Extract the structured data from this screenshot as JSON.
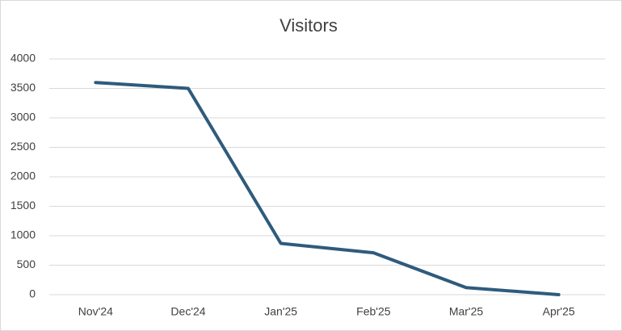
{
  "chart_data": {
    "type": "line",
    "title": "Visitors",
    "categories": [
      "Nov'24",
      "Dec'24",
      "Jan'25",
      "Feb'25",
      "Mar'25",
      "Apr'25"
    ],
    "values": [
      3600,
      3500,
      870,
      710,
      120,
      0
    ],
    "color": "#2f5b7c",
    "ylim": [
      0,
      4000
    ],
    "yticks": [
      0,
      500,
      1000,
      1500,
      2000,
      2500,
      3000,
      3500,
      4000
    ],
    "grid": true
  }
}
